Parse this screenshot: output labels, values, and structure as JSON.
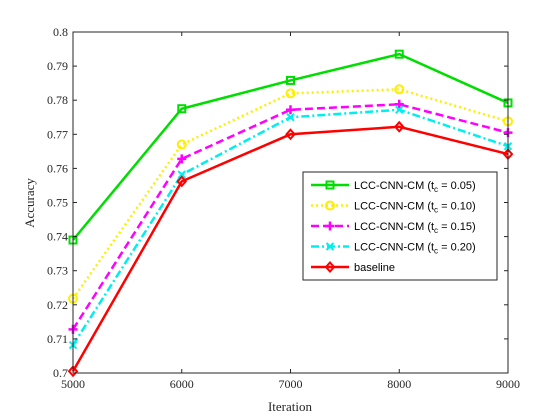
{
  "chart_data": {
    "type": "line",
    "xlabel": "Iteration",
    "ylabel": "Accuracy",
    "x": [
      5000,
      6000,
      7000,
      8000,
      9000
    ],
    "xlim": [
      5000,
      9000
    ],
    "ylim": [
      0.7,
      0.8
    ],
    "xticks": [
      "5000",
      "6000",
      "7000",
      "8000",
      "9000"
    ],
    "yticks": [
      "0.7",
      "0.71",
      "0.72",
      "0.73",
      "0.74",
      "0.75",
      "0.76",
      "0.77",
      "0.78",
      "0.79",
      "0.8"
    ],
    "grid": false,
    "legend_position": "right-middle",
    "series": [
      {
        "name": "LCC-CNN-CM (t_c = 0.05)",
        "label_main": "LCC-CNN-CM (t",
        "label_sub": "c",
        "label_tail": " = 0.05)",
        "values": [
          0.739,
          0.7775,
          0.7858,
          0.7935,
          0.7792
        ],
        "color": "#00dd00",
        "dash": "solid",
        "marker": "square"
      },
      {
        "name": "LCC-CNN-CM (t_c = 0.10)",
        "label_main": "LCC-CNN-CM (t",
        "label_sub": "c",
        "label_tail": " = 0.10)",
        "values": [
          0.7218,
          0.767,
          0.782,
          0.7832,
          0.7738
        ],
        "color": "#ffee00",
        "dash": "dotted",
        "marker": "circle"
      },
      {
        "name": "LCC-CNN-CM (t_c = 0.15)",
        "label_main": "LCC-CNN-CM (t",
        "label_sub": "c",
        "label_tail": " = 0.15)",
        "values": [
          0.7128,
          0.7628,
          0.7772,
          0.7788,
          0.7705
        ],
        "color": "#ff00ff",
        "dash": "dashed",
        "marker": "plus"
      },
      {
        "name": "LCC-CNN-CM (t_c = 0.20)",
        "label_main": "LCC-CNN-CM (t",
        "label_sub": "c",
        "label_tail": " = 0.20)",
        "values": [
          0.7082,
          0.7582,
          0.775,
          0.7772,
          0.7665
        ],
        "color": "#00eeee",
        "dash": "dashdot",
        "marker": "x"
      },
      {
        "name": "baseline",
        "label_main": "baseline",
        "label_sub": "",
        "label_tail": "",
        "values": [
          0.7005,
          0.7562,
          0.77,
          0.7722,
          0.7642
        ],
        "color": "#ff0000",
        "dash": "solid",
        "marker": "diamond"
      }
    ]
  }
}
